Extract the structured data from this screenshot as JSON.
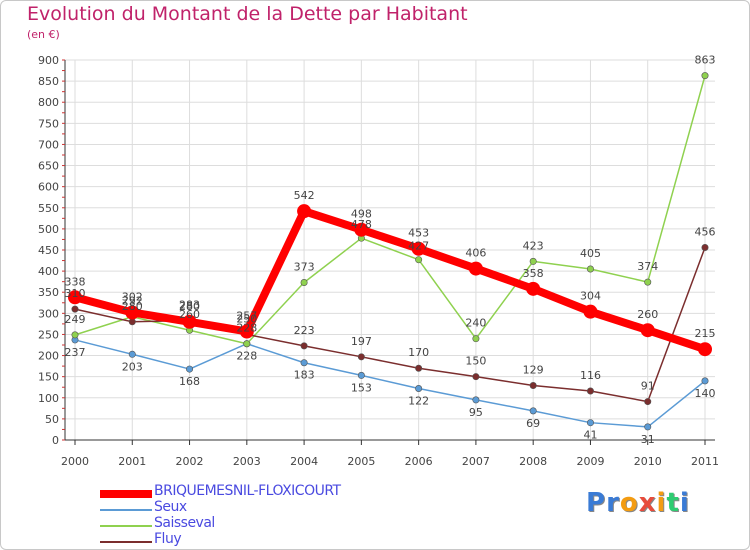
{
  "title": "Evolution du Montant de la Dette par Habitant",
  "subtitle": "(en €)",
  "logo": {
    "text": "Proxiti",
    "letters": [
      "P",
      "r",
      "o",
      "x",
      "i",
      "t",
      "i"
    ],
    "colors": [
      "#3a7bd5",
      "#3a7bd5",
      "#f39c12",
      "#e74c3c",
      "#f39c12",
      "#2ecc71",
      "#3a7bd5"
    ]
  },
  "chart_data": {
    "type": "line",
    "x": [
      "2000",
      "2001",
      "2002",
      "2003",
      "2004",
      "2005",
      "2006",
      "2007",
      "2008",
      "2009",
      "2010",
      "2011"
    ],
    "ylim": [
      0,
      900
    ],
    "yticks": [
      "0",
      "50",
      "100",
      "150",
      "200",
      "250",
      "300",
      "350",
      "400",
      "450",
      "500",
      "550",
      "600",
      "650",
      "700",
      "750",
      "800",
      "850",
      "900"
    ],
    "grid": true,
    "legend_position": "bottom-left",
    "series": [
      {
        "name": "Seux",
        "color": "#5b9bd5",
        "values": [
          237,
          203,
          168,
          228,
          183,
          153,
          122,
          95,
          69,
          41,
          31,
          140
        ],
        "labels": [
          "237",
          "203",
          "168",
          "228",
          "183",
          "153",
          "122",
          "95",
          "69",
          "41",
          "31",
          "140"
        ]
      },
      {
        "name": "Saisseval",
        "color": "#8fd14f",
        "values": [
          249,
          292,
          260,
          228,
          373,
          478,
          427,
          240,
          423,
          405,
          374,
          863
        ],
        "labels": [
          "249",
          "292",
          "260",
          "228",
          "373",
          "478",
          "427",
          "240",
          "423",
          "405",
          "374",
          "863"
        ]
      },
      {
        "name": "Fluy",
        "color": "#7b2e2e",
        "values": [
          310,
          280,
          283,
          250,
          223,
          197,
          170,
          150,
          129,
          116,
          91,
          456
        ],
        "labels": [
          "310",
          "280",
          "283",
          "250",
          "223",
          "197",
          "170",
          "150",
          "129",
          "116",
          "91",
          "456"
        ]
      },
      {
        "name": "BRIQUEMESNIL-FLOXICOURT",
        "color": "#ff0000",
        "values": [
          338,
          302,
          280,
          257,
          542,
          498,
          453,
          406,
          358,
          304,
          260,
          215
        ],
        "labels": [
          "338",
          "302",
          "280",
          "257",
          "542",
          "498",
          "453",
          "406",
          "358",
          "304",
          "260",
          "215"
        ]
      }
    ],
    "legend_order": [
      3,
      0,
      1,
      2
    ]
  }
}
